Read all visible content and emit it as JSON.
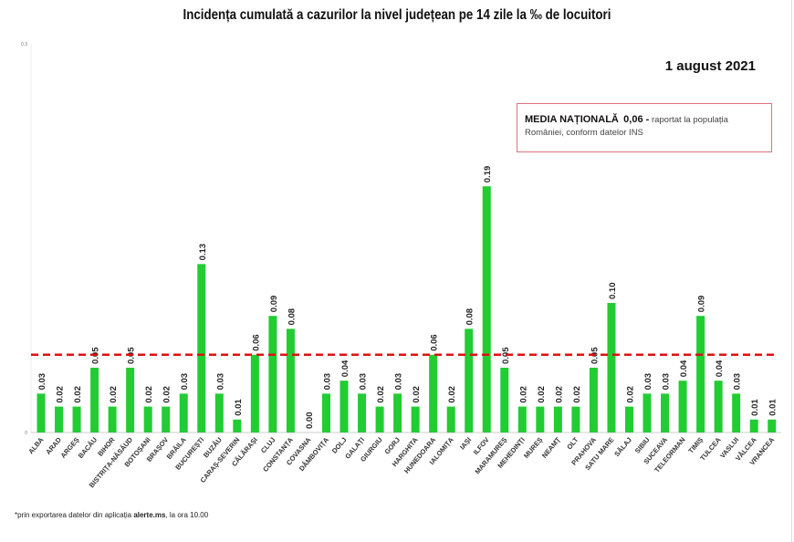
{
  "title": "Incidența cumulată a cazurilor la nivel județean pe 14 zile   la ‰ de locuitori",
  "date": "1 august 2021",
  "legend": {
    "label": "MEDIA NAȚIONALĂ",
    "value": "0,06 -",
    "note": "raportat la populația României, conform datelor INS"
  },
  "footnote": {
    "prefix": "*prin exportarea datelor din aplicația ",
    "app": "alerte.ms",
    "suffix": ", la ora 10.00"
  },
  "chart_data": {
    "type": "bar",
    "title": "Incidența cumulată a cazurilor la nivel județean pe 14 zile   la ‰ de locuitori",
    "xlabel": "",
    "ylabel": "",
    "ylim": [
      0,
      0.3
    ],
    "y_ticks": [
      "0",
      "0.3"
    ],
    "grid": false,
    "bar_color": "#22cc33",
    "reference_line": {
      "value": 0.06,
      "color": "#dd1111",
      "style": "dashed"
    },
    "categories": [
      "ALBA",
      "ARAD",
      "ARGEȘ",
      "BACĂU",
      "BIHOR",
      "BISTRIȚA-NĂSĂUD",
      "BOTOȘANI",
      "BRAȘOV",
      "BRĂILA",
      "BUCUREȘTI",
      "BUZĂU",
      "CARAȘ-SEVERIN",
      "CĂLĂRAȘI",
      "CLUJ",
      "CONSTANȚA",
      "COVASNA",
      "DÂMBOVIȚA",
      "DOLJ",
      "GALAȚI",
      "GIURGIU",
      "GORJ",
      "HARGHITA",
      "HUNEDOARA",
      "IALOMIȚA",
      "IAȘI",
      "ILFOV",
      "MARAMUREȘ",
      "MEHEDINȚI",
      "MUREȘ",
      "NEAMȚ",
      "OLT",
      "PRAHOVA",
      "SATU MARE",
      "SĂLAJ",
      "SIBIU",
      "SUCEAVA",
      "TELEORMAN",
      "TIMIȘ",
      "TULCEA",
      "VASLUI",
      "VÂLCEA",
      "VRANCEA"
    ],
    "values": [
      0.03,
      0.02,
      0.02,
      0.05,
      0.02,
      0.05,
      0.02,
      0.02,
      0.03,
      0.13,
      0.03,
      0.01,
      0.06,
      0.09,
      0.08,
      0.0,
      0.03,
      0.04,
      0.03,
      0.02,
      0.03,
      0.02,
      0.06,
      0.02,
      0.08,
      0.19,
      0.05,
      0.02,
      0.02,
      0.02,
      0.02,
      0.05,
      0.1,
      0.02,
      0.03,
      0.03,
      0.04,
      0.09,
      0.04,
      0.03,
      0.01,
      0.01
    ],
    "data_labels": [
      "0.03",
      "0.02",
      "0.02",
      "0.05",
      "0.02",
      "0.05",
      "0.02",
      "0.02",
      "0.03",
      "0.13",
      "0.03",
      "0.01",
      "0.06",
      "0.09",
      "0.08",
      "0.00",
      "0.03",
      "0.04",
      "0.03",
      "0.02",
      "0.03",
      "0.02",
      "0.06",
      "0.02",
      "0.08",
      "0.19",
      "0.05",
      "0.02",
      "0.02",
      "0.02",
      "0.02",
      "0.05",
      "0.10",
      "0.02",
      "0.03",
      "0.03",
      "0.04",
      "0.09",
      "0.04",
      "0.03",
      "0.01",
      "0.01"
    ]
  }
}
